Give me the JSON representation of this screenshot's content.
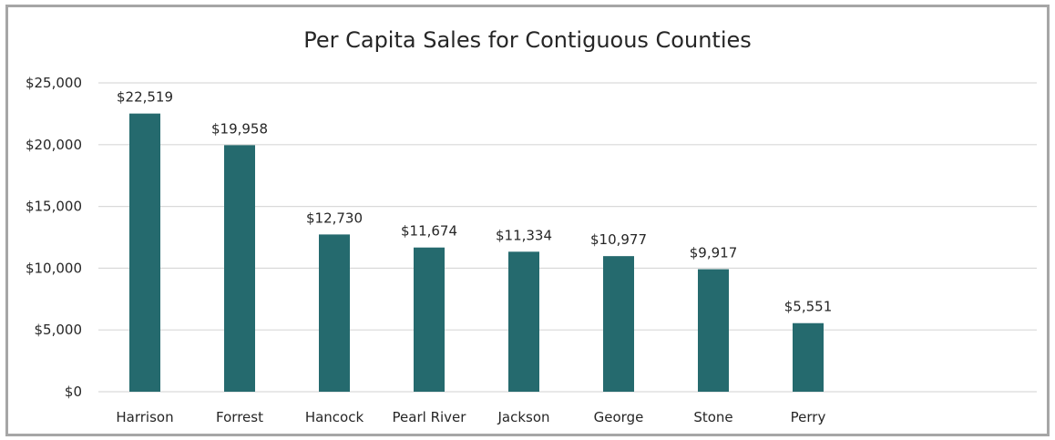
{
  "chart_data": {
    "type": "bar",
    "title": "Per Capita Sales for Contiguous Counties",
    "xlabel": "",
    "ylabel": "",
    "categories": [
      "Harrison",
      "Forrest",
      "Hancock",
      "Pearl River",
      "Jackson",
      "George",
      "Stone",
      "Perry"
    ],
    "values": [
      22519,
      19958,
      12730,
      11674,
      11334,
      10977,
      9917,
      5551
    ],
    "data_labels": [
      "$22,519",
      "$19,958",
      "$12,730",
      "$11,674",
      "$11,334",
      "$10,977",
      "$9,917",
      "$5,551"
    ],
    "yticks": [
      0,
      5000,
      10000,
      15000,
      20000,
      25000
    ],
    "ytick_labels": [
      "$0",
      "$5,000",
      "$10,000",
      "$15,000",
      "$20,000",
      "$25,000"
    ],
    "ylim": [
      0,
      25000
    ],
    "grid": true,
    "legend": "none",
    "bar_color": "#256a6e",
    "grid_color": "#d9d9d9"
  }
}
